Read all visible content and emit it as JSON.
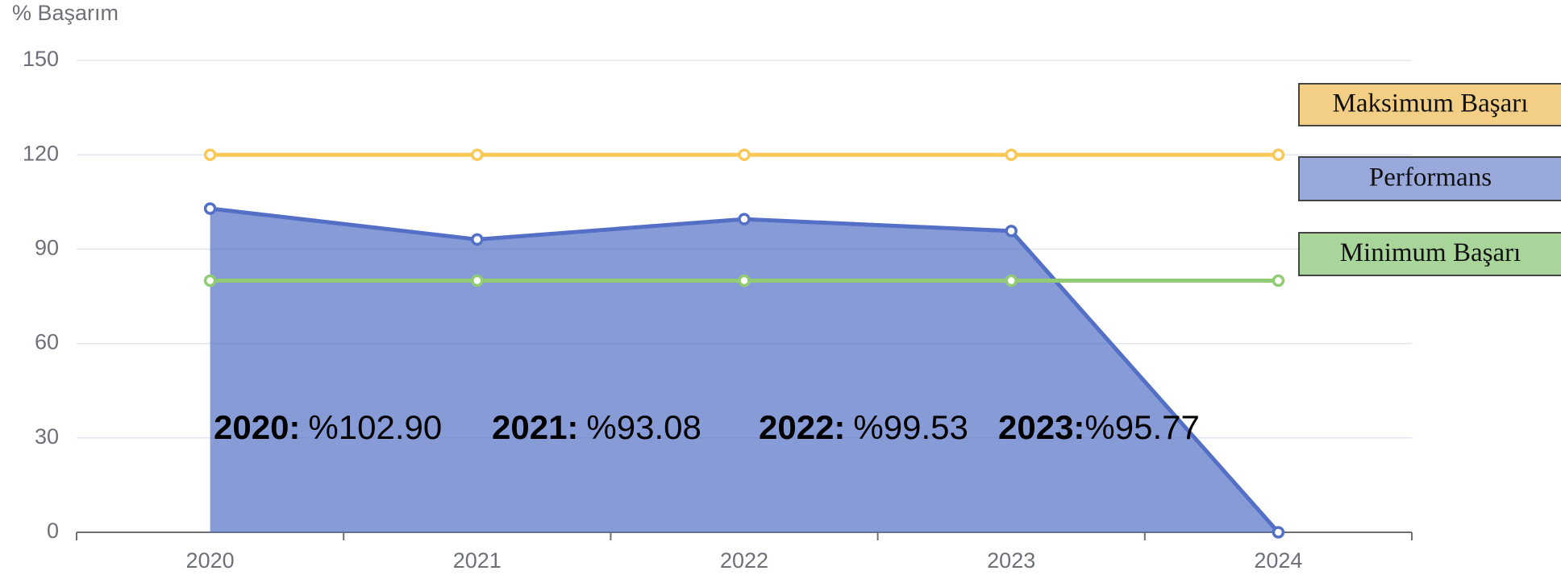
{
  "chart_data": {
    "type": "line",
    "y_label": "% Başarım",
    "categories": [
      "2020",
      "2021",
      "2022",
      "2023",
      "2024"
    ],
    "ylim": [
      0,
      150
    ],
    "yticks": [
      0,
      30,
      60,
      90,
      120,
      150
    ],
    "grid": true,
    "legend": "right",
    "series": [
      {
        "name": "Maksimum Başarı",
        "color": "#fac858",
        "legend_color": "#f3cf85",
        "values": [
          120,
          120,
          120,
          120,
          120
        ]
      },
      {
        "name": "Performans",
        "color": "#5470c6",
        "legend_color": "#9aa9dc",
        "area": true,
        "values": [
          102.9,
          93.08,
          99.53,
          95.77,
          0
        ],
        "value_labels": [
          "%102.90",
          "%93.08",
          "%99.53",
          "%95.77",
          null
        ]
      },
      {
        "name": "Minimum Başarı",
        "color": "#91cc75",
        "legend_color": "#a8d59a",
        "values": [
          80,
          80,
          80,
          80,
          80
        ]
      }
    ],
    "annotation_years": [
      "2020:",
      "2021:",
      "2022:",
      "2023:",
      null
    ]
  }
}
